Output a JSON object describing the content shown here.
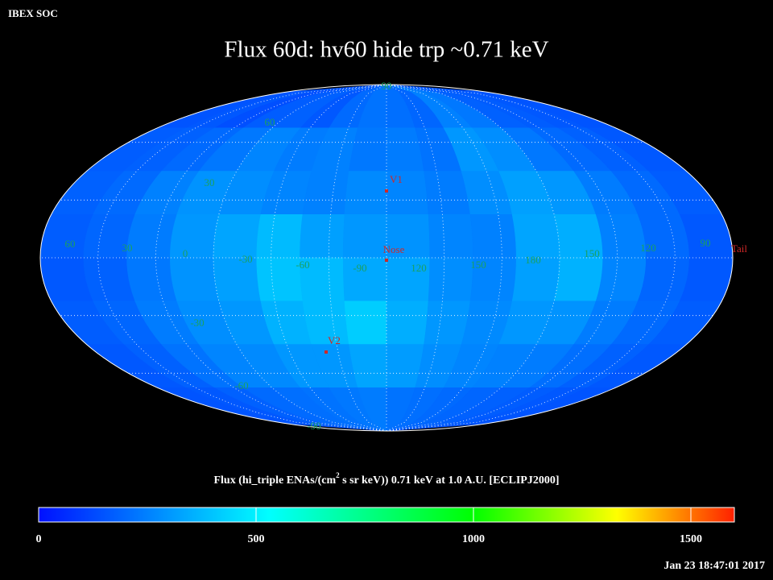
{
  "header": {
    "corner": "IBEX SOC",
    "title": "Flux   60d: hv60 hide trp ~0.71 keV",
    "timestamp": "Jan 23 18:47:01 2017"
  },
  "map": {
    "lat_labels": [
      90,
      60,
      30,
      -30,
      -60,
      -90
    ],
    "lon_labels": [
      60,
      30,
      0,
      -30,
      -60,
      -90,
      120,
      150,
      180,
      150,
      120,
      90
    ],
    "markers": [
      "V1",
      "Nose",
      "V2",
      "Tail"
    ],
    "flux": [
      [
        150,
        160,
        140,
        170,
        180,
        160,
        200,
        220,
        210,
        190,
        250,
        230,
        180,
        170,
        160,
        150
      ],
      [
        170,
        180,
        200,
        230,
        260,
        240,
        250,
        230,
        240,
        220,
        300,
        280,
        230,
        200,
        180,
        160
      ],
      [
        180,
        200,
        250,
        290,
        280,
        260,
        250,
        270,
        260,
        240,
        280,
        320,
        300,
        240,
        200,
        170
      ],
      [
        170,
        190,
        240,
        300,
        330,
        380,
        320,
        300,
        290,
        260,
        250,
        330,
        350,
        250,
        200,
        160
      ],
      [
        160,
        180,
        230,
        290,
        320,
        400,
        380,
        340,
        330,
        280,
        260,
        320,
        360,
        260,
        190,
        160
      ],
      [
        170,
        190,
        240,
        280,
        300,
        360,
        380,
        420,
        350,
        300,
        270,
        300,
        290,
        240,
        200,
        170
      ],
      [
        160,
        180,
        220,
        260,
        270,
        300,
        300,
        330,
        310,
        280,
        260,
        250,
        240,
        210,
        180,
        160
      ],
      [
        150,
        160,
        180,
        200,
        210,
        220,
        230,
        240,
        220,
        210,
        200,
        190,
        180,
        170,
        160,
        150
      ]
    ]
  },
  "colorbar": {
    "label_parts": [
      "Flux (hi_triple ENAs/(cm",
      "2",
      " s sr keV))  0.71 keV at 1.0 A.U. [ECLIPJ2000]"
    ],
    "lim": [
      0,
      1600
    ],
    "ticks": [
      0,
      500,
      1000,
      1500
    ],
    "colormap": [
      {
        "value": 0,
        "color": "#0010ff"
      },
      {
        "value": 530,
        "color": "#00ffff"
      },
      {
        "value": 1000,
        "color": "#00ff00"
      },
      {
        "value": 1330,
        "color": "#ffff00"
      },
      {
        "value": 1600,
        "color": "#ff2000"
      }
    ]
  }
}
